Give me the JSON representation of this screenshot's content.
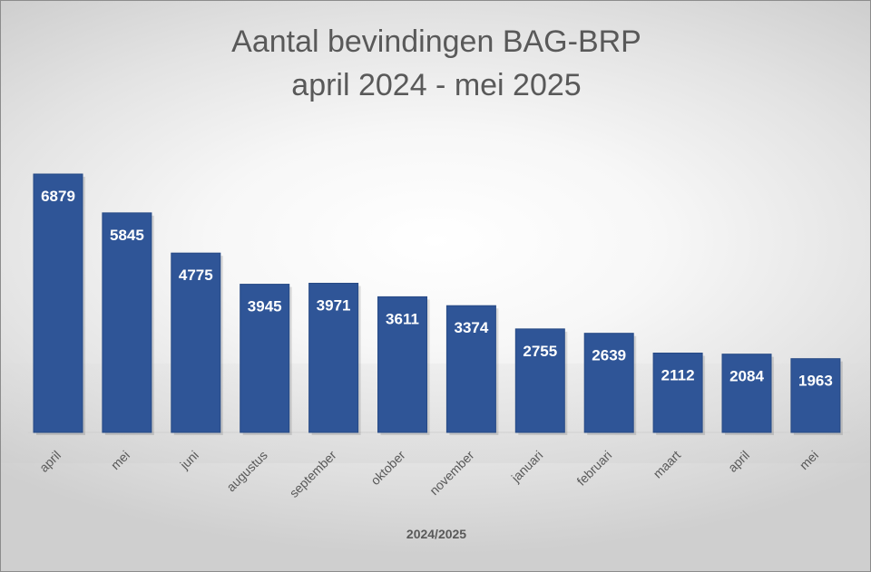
{
  "chart_data": {
    "type": "bar",
    "title": "Aantal bevindingen BAG-BRP",
    "subtitle": "april 2024 - mei 2025",
    "xlabel": "2024/2025",
    "ylabel": "",
    "categories": [
      "april",
      "mei",
      "juni",
      "augustus",
      "september",
      "oktober",
      "november",
      "januari",
      "februari",
      "maart",
      "april",
      "mei"
    ],
    "values": [
      6879,
      5845,
      4775,
      3945,
      3971,
      3611,
      3374,
      2755,
      2639,
      2112,
      2084,
      1963
    ],
    "ylim": [
      0,
      7000
    ],
    "grid": false,
    "legend": "none",
    "colors": {
      "bar": "#2f5597",
      "bar_edge": "#274a85",
      "data_label": "#ffffff",
      "tick_label": "#595959",
      "title": "#595959"
    }
  }
}
